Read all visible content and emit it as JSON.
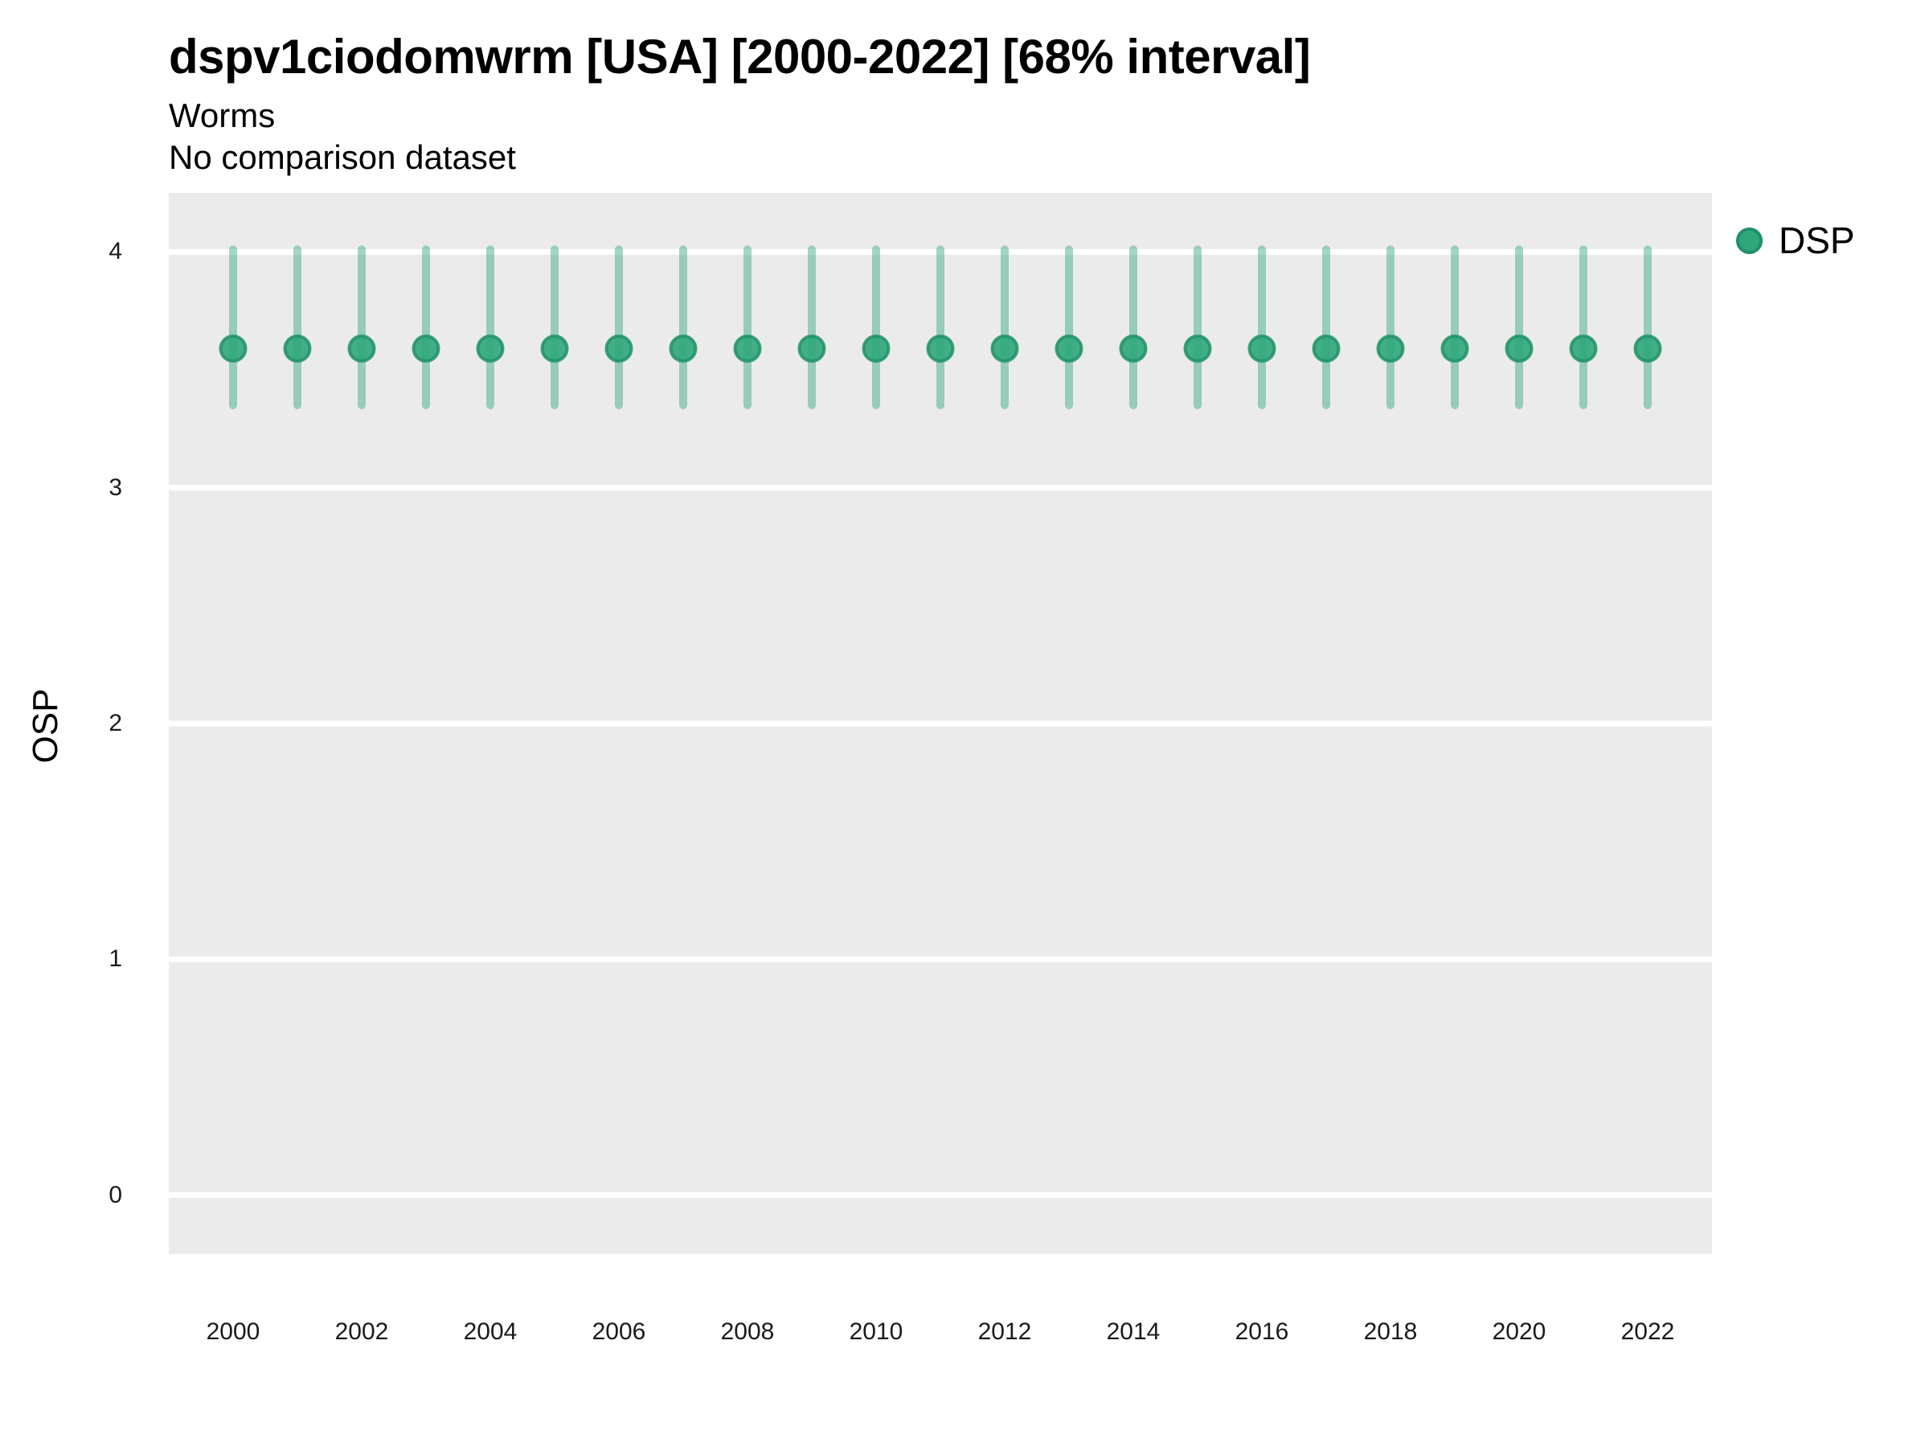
{
  "header": {
    "title": "dspv1ciodomwrm [USA] [2000-2022] [68% interval]",
    "subtitle": "Worms",
    "comparison_note": "No comparison dataset"
  },
  "legend": {
    "entries": [
      {
        "label": "DSP"
      }
    ],
    "position": "right"
  },
  "colors": {
    "series": "#2fa77b",
    "series_stroke": "#219169",
    "interval": "rgba(47,167,123,0.45)",
    "panel_bg": "#ebebeb",
    "gridline": "#ffffff",
    "title_text": "#000000",
    "tick_text": "#1a1a1a"
  },
  "chart_data": {
    "type": "pointrange",
    "title": "dspv1ciodomwrm [USA] [2000-2022] [68% interval]",
    "subtitle": "Worms",
    "comparison_note": "No comparison dataset",
    "interval_note": "68% interval",
    "xlabel": "",
    "ylabel": "OSP",
    "x": [
      2000,
      2001,
      2002,
      2003,
      2004,
      2005,
      2006,
      2007,
      2008,
      2009,
      2010,
      2011,
      2012,
      2013,
      2014,
      2015,
      2016,
      2017,
      2018,
      2019,
      2020,
      2021,
      2022
    ],
    "series": [
      {
        "name": "DSP",
        "mean": [
          3.59,
          3.59,
          3.59,
          3.59,
          3.59,
          3.59,
          3.59,
          3.59,
          3.59,
          3.59,
          3.59,
          3.59,
          3.59,
          3.59,
          3.59,
          3.59,
          3.59,
          3.59,
          3.59,
          3.59,
          3.59,
          3.59,
          3.59
        ],
        "low": [
          3.35,
          3.35,
          3.35,
          3.35,
          3.35,
          3.35,
          3.35,
          3.35,
          3.35,
          3.35,
          3.35,
          3.35,
          3.35,
          3.35,
          3.35,
          3.35,
          3.35,
          3.35,
          3.35,
          3.35,
          3.35,
          3.35,
          3.35
        ],
        "high": [
          4.01,
          4.01,
          4.01,
          4.01,
          4.01,
          4.01,
          4.01,
          4.01,
          4.01,
          4.01,
          4.01,
          4.01,
          4.01,
          4.01,
          4.01,
          4.01,
          4.01,
          4.01,
          4.01,
          4.01,
          4.01,
          4.01,
          4.01
        ]
      }
    ],
    "ylim": [
      -0.25,
      4.25
    ],
    "yticks": [
      0,
      1,
      2,
      3,
      4
    ],
    "xticks": [
      2000,
      2002,
      2004,
      2006,
      2008,
      2010,
      2012,
      2014,
      2016,
      2018,
      2020,
      2022
    ],
    "grid": "horizontal-major-only",
    "legend_position": "right"
  }
}
